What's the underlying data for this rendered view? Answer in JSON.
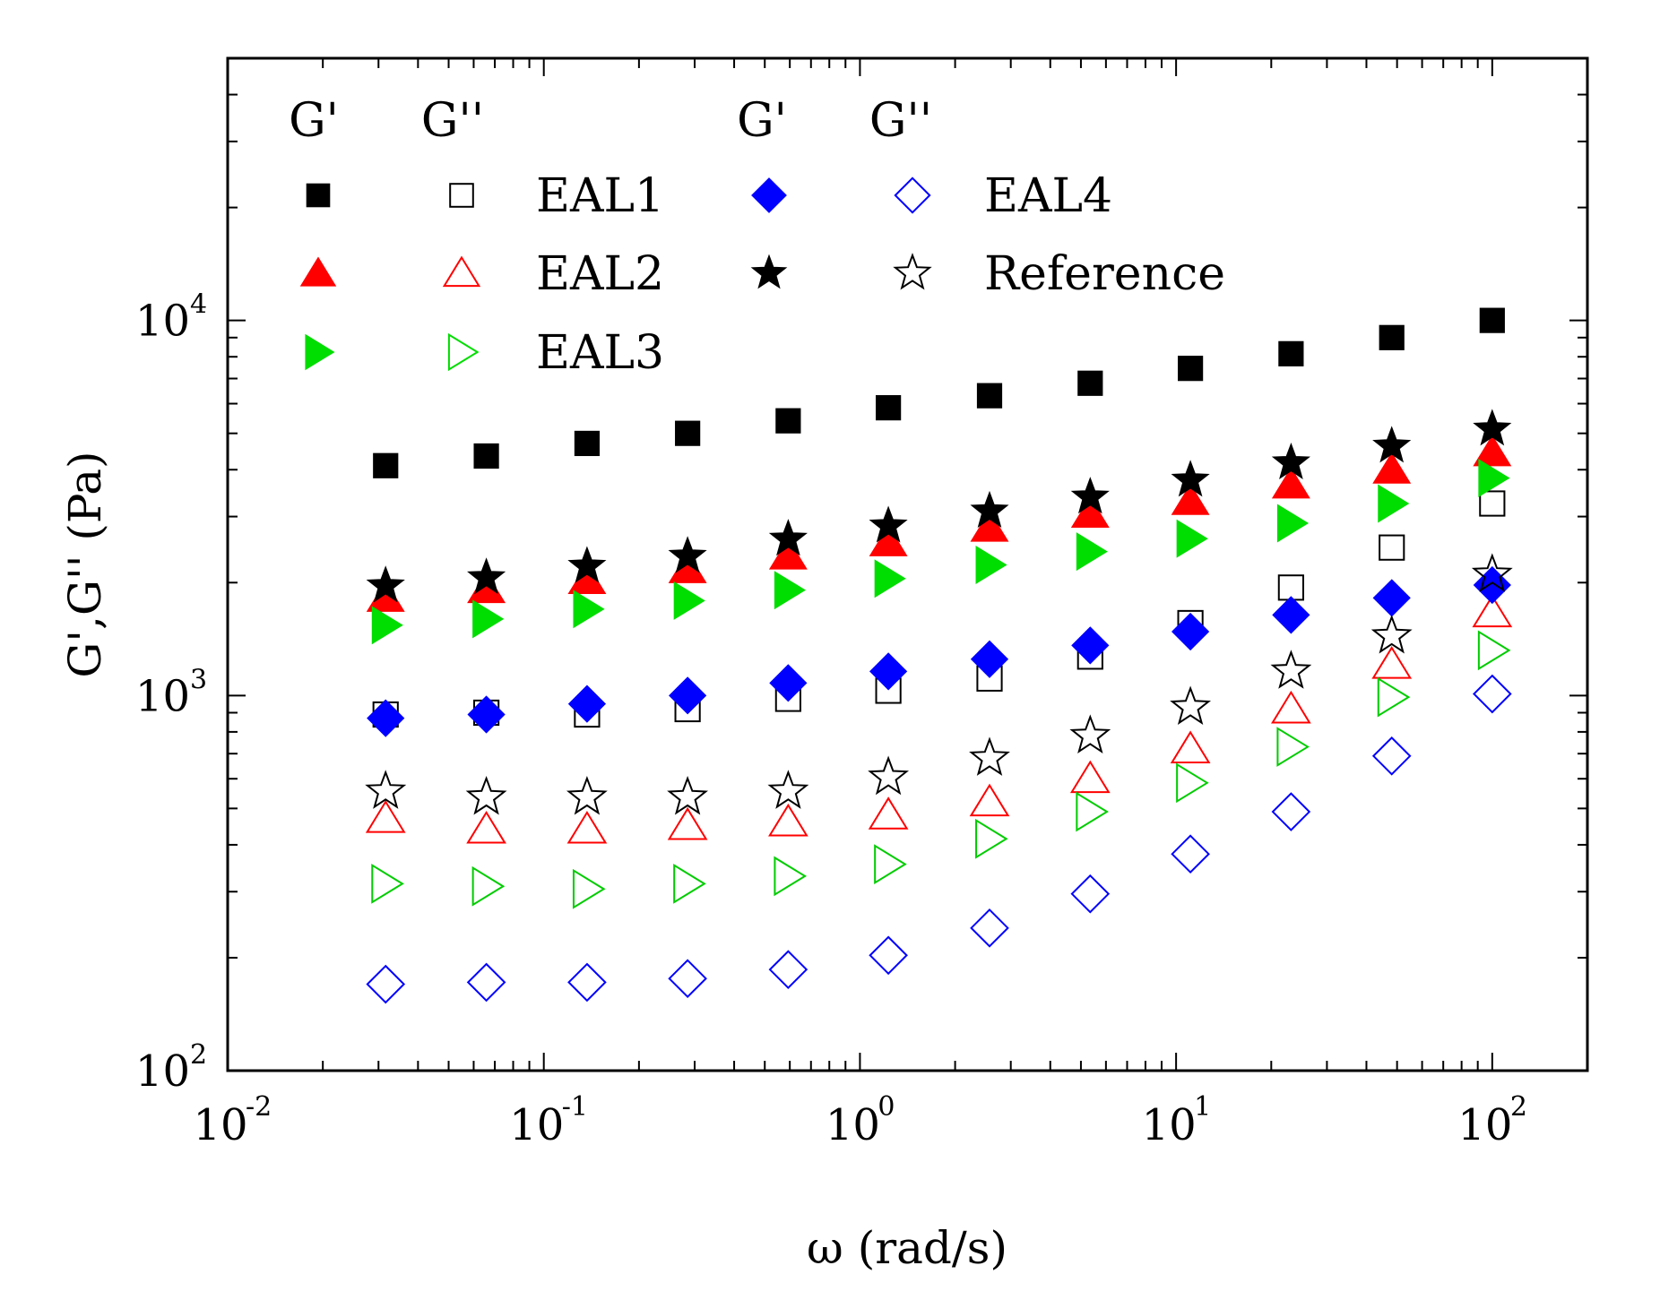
{
  "chart_data": {
    "type": "scatter",
    "xscale": "log",
    "yscale": "log",
    "xlim": [
      0.01,
      200
    ],
    "ylim": [
      100,
      50000
    ],
    "xlabel": "ω (rad/s)",
    "ylabel": "G',G'' (Pa)",
    "x_ticks": [
      {
        "base": "10",
        "exp": "-2",
        "value": 0.01
      },
      {
        "base": "10",
        "exp": "-1",
        "value": 0.1
      },
      {
        "base": "10",
        "exp": "0",
        "value": 1
      },
      {
        "base": "10",
        "exp": "1",
        "value": 10
      },
      {
        "base": "10",
        "exp": "2",
        "value": 100
      }
    ],
    "y_ticks": [
      {
        "base": "10",
        "exp": "2",
        "value": 100
      },
      {
        "base": "10",
        "exp": "3",
        "value": 1000
      },
      {
        "base": "10",
        "exp": "4",
        "value": 10000
      }
    ],
    "legend_headers": [
      "G'",
      "G''",
      "G'",
      "G''"
    ],
    "x": [
      0.0316,
      0.0658,
      0.137,
      0.285,
      0.593,
      1.23,
      2.57,
      5.35,
      11.1,
      23.1,
      48.1,
      100
    ],
    "series": [
      {
        "name": "EAL1",
        "modulus": "G'",
        "marker": "square",
        "filled": true,
        "color": "#000000",
        "values": [
          4100,
          4350,
          4700,
          5000,
          5400,
          5850,
          6300,
          6800,
          7450,
          8150,
          9000,
          10000
        ]
      },
      {
        "name": "EAL1",
        "modulus": "G''",
        "marker": "square",
        "filled": false,
        "color": "#000000",
        "values": [
          890,
          900,
          890,
          920,
          980,
          1030,
          1110,
          1270,
          1560,
          1940,
          2480,
          3250
        ]
      },
      {
        "name": "EAL2",
        "modulus": "G'",
        "marker": "triangle-up",
        "filled": true,
        "color": "#ff0000",
        "values": [
          1820,
          1920,
          2030,
          2170,
          2360,
          2560,
          2800,
          3050,
          3300,
          3650,
          4000,
          4450
        ]
      },
      {
        "name": "EAL2",
        "modulus": "G''",
        "marker": "triangle-up",
        "filled": false,
        "color": "#ff0000",
        "values": [
          470,
          440,
          440,
          450,
          460,
          480,
          520,
          600,
          720,
          920,
          1210,
          1660
        ]
      },
      {
        "name": "EAL3",
        "modulus": "G'",
        "marker": "triangle-right",
        "filled": true,
        "color": "#00dd00",
        "values": [
          1540,
          1600,
          1700,
          1790,
          1910,
          2050,
          2230,
          2420,
          2620,
          2880,
          3250,
          3800
        ]
      },
      {
        "name": "EAL3",
        "modulus": "G''",
        "marker": "triangle-right",
        "filled": false,
        "color": "#00cc00",
        "values": [
          315,
          310,
          305,
          315,
          330,
          355,
          415,
          490,
          585,
          730,
          990,
          1320
        ]
      },
      {
        "name": "EAL4",
        "modulus": "G'",
        "marker": "diamond",
        "filled": true,
        "color": "#0000ff",
        "values": [
          870,
          890,
          950,
          1000,
          1080,
          1160,
          1250,
          1360,
          1480,
          1640,
          1820,
          1970
        ]
      },
      {
        "name": "EAL4",
        "modulus": "G''",
        "marker": "diamond",
        "filled": false,
        "color": "#0000ff",
        "values": [
          170,
          172,
          172,
          176,
          186,
          203,
          240,
          296,
          378,
          490,
          690,
          1010
        ]
      },
      {
        "name": "Reference",
        "modulus": "G'",
        "marker": "star",
        "filled": true,
        "color": "#000000",
        "values": [
          1960,
          2060,
          2210,
          2350,
          2610,
          2830,
          3100,
          3380,
          3750,
          4170,
          4620,
          5130
        ]
      },
      {
        "name": "Reference",
        "modulus": "G''",
        "marker": "star",
        "filled": false,
        "color": "#000000",
        "values": [
          555,
          535,
          535,
          535,
          555,
          605,
          680,
          780,
          930,
          1160,
          1440,
          2100
        ]
      }
    ],
    "legend": [
      {
        "label": "EAL1",
        "filled_marker": "square",
        "open_marker": "square",
        "color": "#000000",
        "column": 1,
        "row": 1
      },
      {
        "label": "EAL2",
        "filled_marker": "triangle-up",
        "open_marker": "triangle-up",
        "color": "#ff0000",
        "column": 1,
        "row": 2
      },
      {
        "label": "EAL3",
        "filled_marker": "triangle-right",
        "open_marker": "triangle-right",
        "color": "#00dd00",
        "column": 1,
        "row": 3
      },
      {
        "label": "EAL4",
        "filled_marker": "diamond",
        "open_marker": "diamond",
        "color": "#0000ff",
        "column": 2,
        "row": 1
      },
      {
        "label": "Reference",
        "filled_marker": "star",
        "open_marker": "star",
        "color": "#000000",
        "column": 2,
        "row": 2
      }
    ]
  }
}
